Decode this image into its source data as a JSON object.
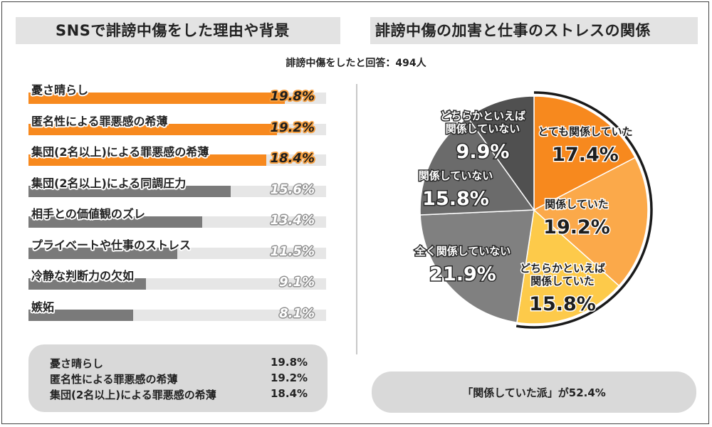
{
  "colors": {
    "orange_bar": "#f7891e",
    "gray_bar": "#7a7a7a",
    "track": "#e6e6e6",
    "slice_very_related": "#f7891e",
    "slice_related": "#fba94a",
    "slice_somewhat_related": "#fdca4a",
    "slice_not_at_all": "#808080",
    "slice_not_related": "#6b6b6b",
    "slice_somewhat_not": "#505050"
  },
  "left_title": "SNSで誹謗中傷をした理由や背景",
  "right_title": "誹謗中傷の加害と仕事のストレスの関係",
  "respondents": "誹謗中傷をしたと回答：494人",
  "summary": [
    {
      "label": "憂さ晴らし",
      "value": "19.8%"
    },
    {
      "label": "匿名性による罪悪感の希薄",
      "value": "19.2%"
    },
    {
      "label": "集団(2名以上)による罪悪感の希薄",
      "value": "18.4%"
    }
  ],
  "conclusion": "「関係していた派」が52.4%",
  "chart_data": [
    {
      "type": "bar",
      "orientation": "horizontal",
      "title": "SNSで誹謗中傷をした理由や背景",
      "xlim": [
        0,
        23
      ],
      "categories": [
        "憂さ晴らし",
        "匿名性による罪悪感の希薄",
        "集団(2名以上)による罪悪感の希薄",
        "集団(2名以上)による同調圧力",
        "相手との価値観のズレ",
        "プライベートや仕事のストレス",
        "冷静な判断力の欠如",
        "嫉妬"
      ],
      "values": [
        19.8,
        19.2,
        18.4,
        15.6,
        13.4,
        11.5,
        9.1,
        8.1
      ],
      "value_labels": [
        "19.8%",
        "19.2%",
        "18.4%",
        "15.6%",
        "13.4%",
        "11.5%",
        "9.1%",
        "8.1%"
      ],
      "highlight_top_n": 3
    },
    {
      "type": "pie",
      "title": "誹謗中傷の加害と仕事のストレスの関係",
      "slices": [
        {
          "label_lines": [
            "とても関係していた"
          ],
          "value": 17.4,
          "value_label": "17.4%",
          "color": "#f7891e"
        },
        {
          "label_lines": [
            "関係していた"
          ],
          "value": 19.2,
          "value_label": "19.2%",
          "color": "#fba94a"
        },
        {
          "label_lines": [
            "どちらかといえば",
            "関係していた"
          ],
          "value": 15.8,
          "value_label": "15.8%",
          "color": "#fdca4a"
        },
        {
          "label_lines": [
            "全く関係していない"
          ],
          "value": 21.9,
          "value_label": "21.9%",
          "color": "#808080"
        },
        {
          "label_lines": [
            "関係していない"
          ],
          "value": 15.8,
          "value_label": "15.8%",
          "color": "#6b6b6b"
        },
        {
          "label_lines": [
            "どちらかといえば",
            "関係していない"
          ],
          "value": 9.9,
          "value_label": "9.9%",
          "color": "#505050"
        }
      ]
    }
  ]
}
